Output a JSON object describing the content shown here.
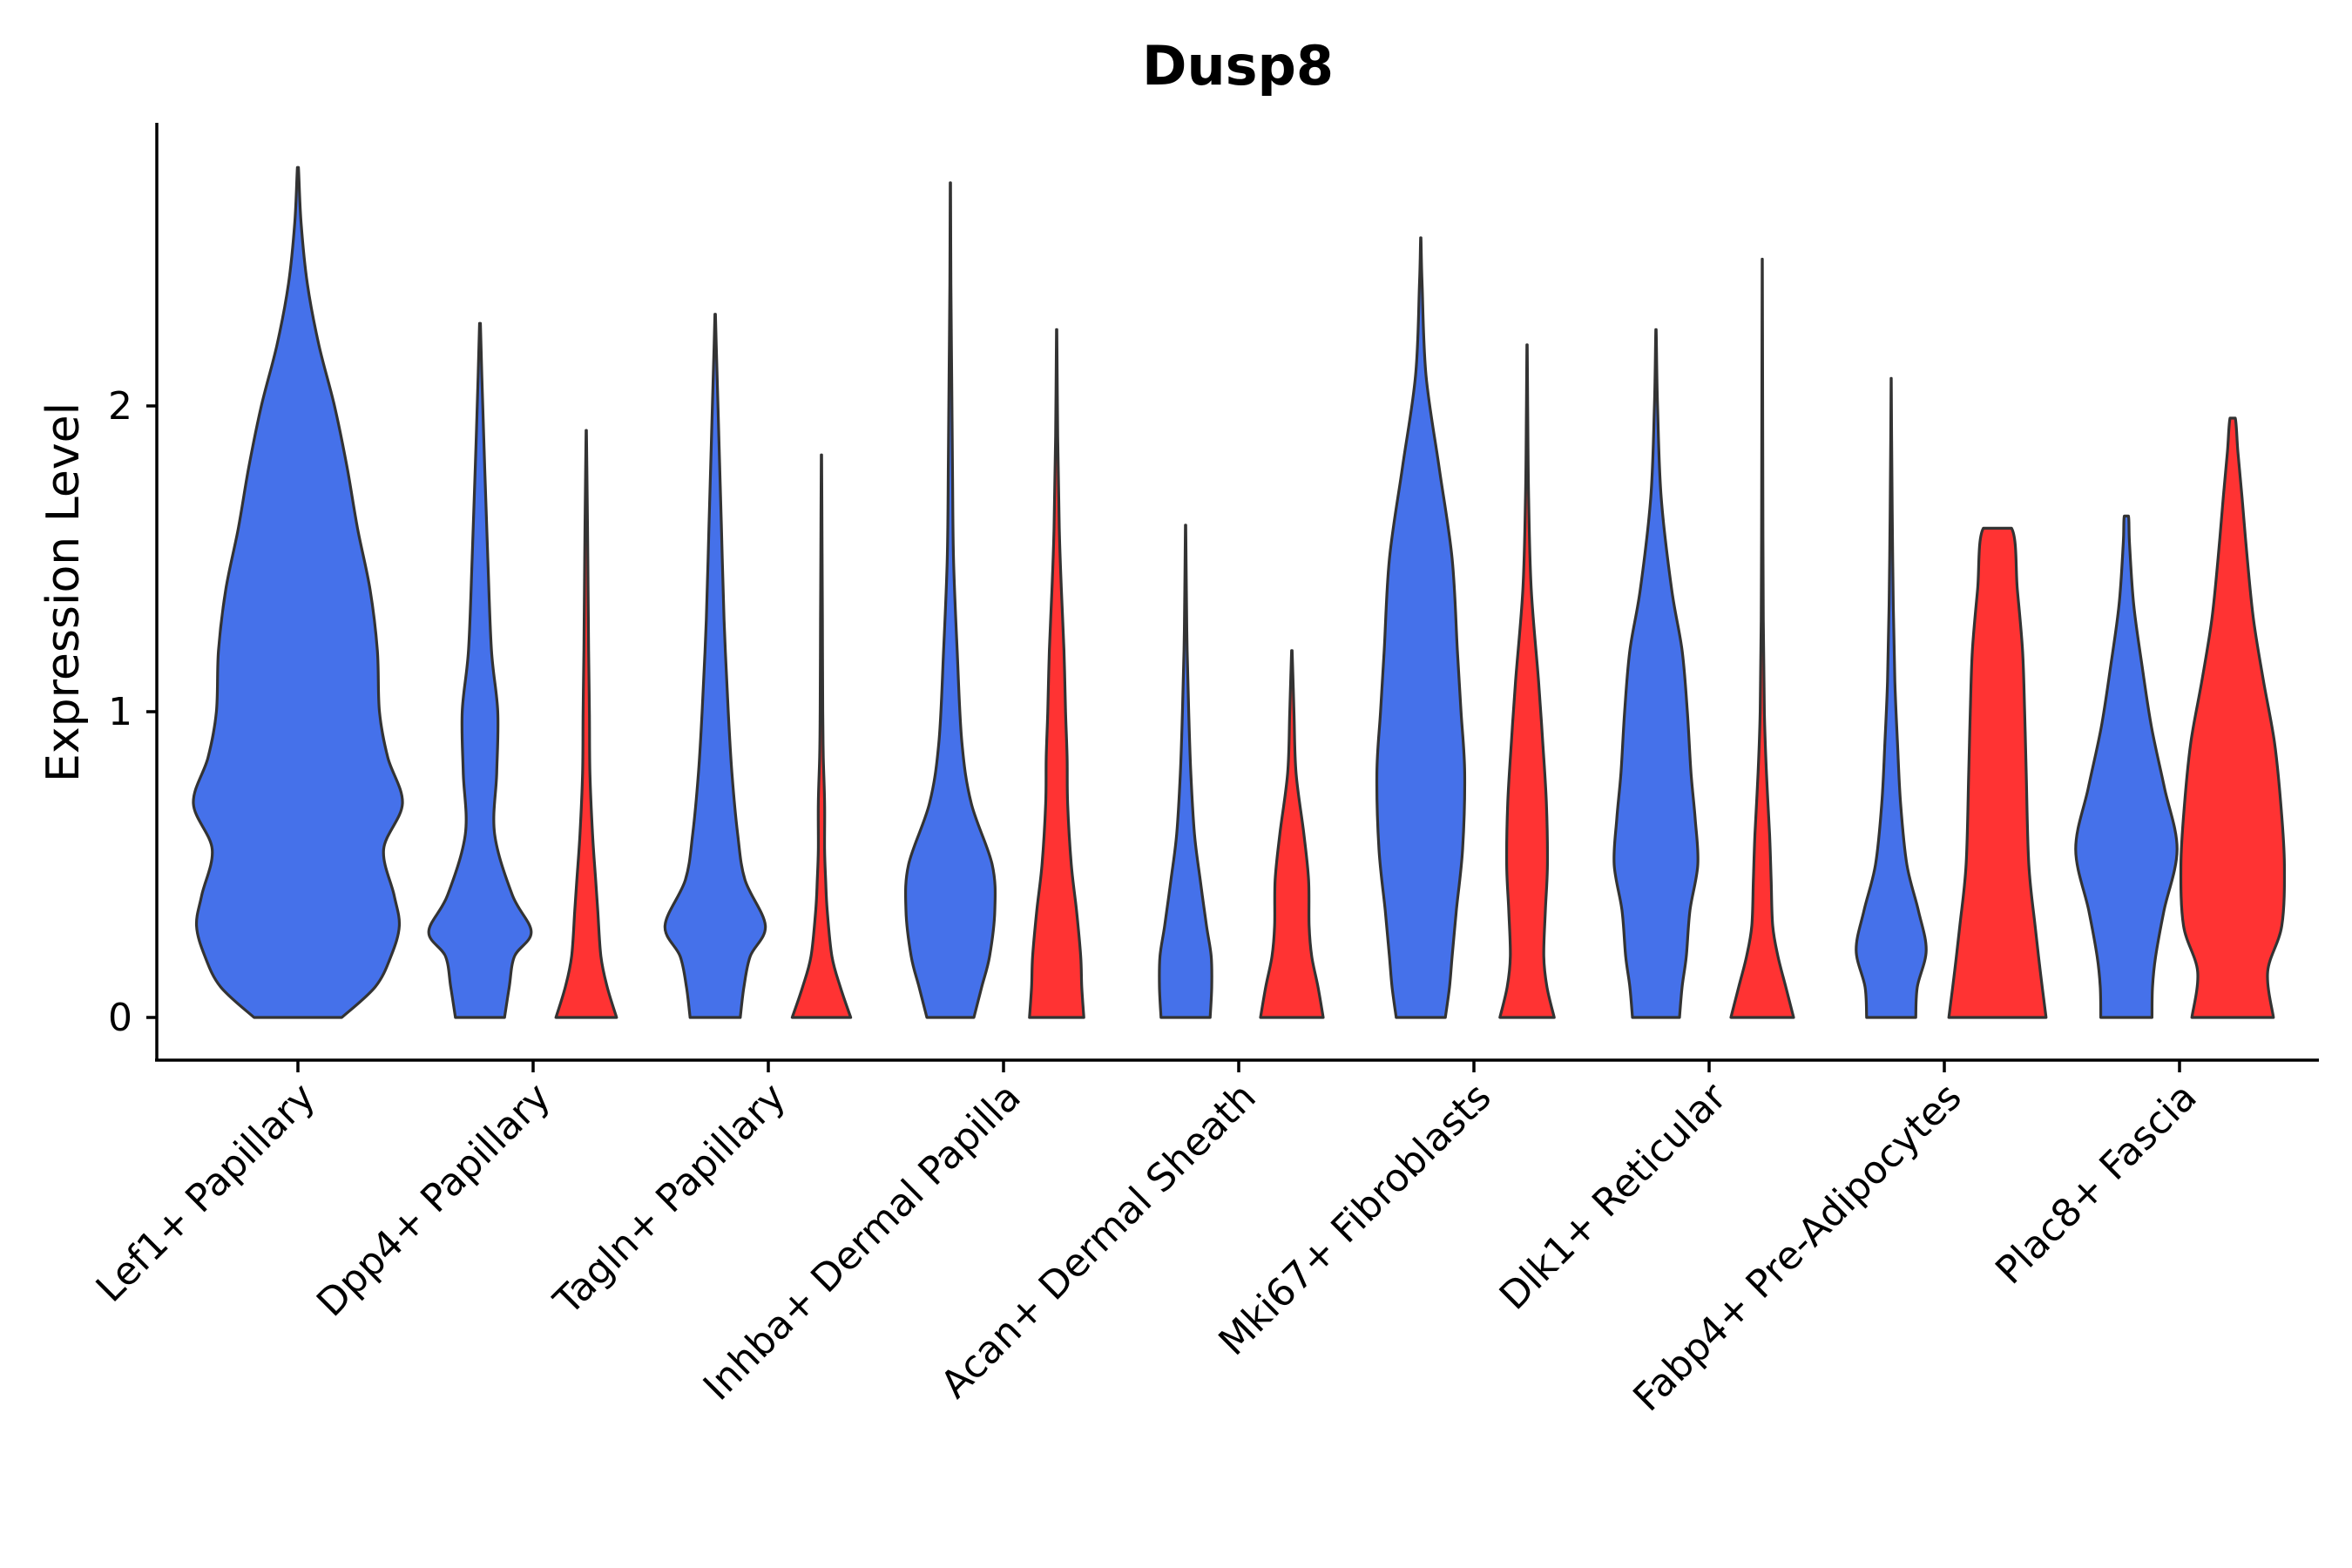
{
  "chart_data": {
    "type": "violin",
    "title": "Dusp8",
    "ylabel": "Expression Level",
    "xlabel": "",
    "ylim": [
      -0.14,
      2.95
    ],
    "yticks": [
      0,
      1,
      2
    ],
    "grid": false,
    "legend": "none",
    "split_colors": [
      "#4571EA",
      "#FF3333"
    ],
    "categories": [
      "Lef1+ Papillary",
      "Dpp4+ Papillary",
      "Tagln+ Papillary",
      "Inhba+ Dermal Papilla",
      "Acan+ Dermal Sheath",
      "Mki67+ Fibroblasts",
      "Dlk1+ Reticular",
      "Fabp4+ Pre-Adipocytes",
      "Plac8+ Fascia"
    ],
    "violins": [
      {
        "category": "Lef1+ Papillary",
        "group": 0,
        "color": "#4571EA",
        "ymax": 2.78,
        "profile": [
          [
            0,
            0.42
          ],
          [
            0.1,
            0.74
          ],
          [
            0.2,
            0.89
          ],
          [
            0.3,
            0.97
          ],
          [
            0.4,
            0.92
          ],
          [
            0.55,
            0.82
          ],
          [
            0.7,
            1.0
          ],
          [
            0.85,
            0.86
          ],
          [
            1.0,
            0.78
          ],
          [
            1.2,
            0.76
          ],
          [
            1.4,
            0.69
          ],
          [
            1.6,
            0.57
          ],
          [
            1.8,
            0.47
          ],
          [
            2.0,
            0.35
          ],
          [
            2.2,
            0.2
          ],
          [
            2.4,
            0.09
          ],
          [
            2.6,
            0.03
          ],
          [
            2.78,
            0.005
          ]
        ]
      },
      {
        "category": "Dpp4+ Papillary",
        "group": 0,
        "color": "#4571EA",
        "ymax": 2.27,
        "profile": [
          [
            0,
            0.47
          ],
          [
            0.1,
            0.56
          ],
          [
            0.2,
            0.66
          ],
          [
            0.28,
            0.98
          ],
          [
            0.4,
            0.62
          ],
          [
            0.6,
            0.28
          ],
          [
            0.8,
            0.32
          ],
          [
            1.0,
            0.34
          ],
          [
            1.2,
            0.22
          ],
          [
            1.5,
            0.15
          ],
          [
            1.8,
            0.09
          ],
          [
            2.1,
            0.035
          ],
          [
            2.27,
            0.008
          ]
        ]
      },
      {
        "category": "Dpp4+ Papillary",
        "group": 1,
        "color": "#FF3333",
        "ymax": 1.92,
        "profile": [
          [
            0,
            0.58
          ],
          [
            0.1,
            0.4
          ],
          [
            0.2,
            0.28
          ],
          [
            0.35,
            0.22
          ],
          [
            0.45,
            0.18
          ],
          [
            0.6,
            0.12
          ],
          [
            0.8,
            0.07
          ],
          [
            1.0,
            0.06
          ],
          [
            1.2,
            0.045
          ],
          [
            1.5,
            0.03
          ],
          [
            1.8,
            0.012
          ],
          [
            1.92,
            0.004
          ]
        ]
      },
      {
        "category": "Tagln+ Papillary",
        "group": 0,
        "color": "#4571EA",
        "ymax": 2.3,
        "profile": [
          [
            0,
            0.48
          ],
          [
            0.1,
            0.55
          ],
          [
            0.2,
            0.67
          ],
          [
            0.3,
            0.96
          ],
          [
            0.45,
            0.57
          ],
          [
            0.6,
            0.43
          ],
          [
            0.8,
            0.32
          ],
          [
            1.0,
            0.25
          ],
          [
            1.3,
            0.17
          ],
          [
            1.6,
            0.12
          ],
          [
            1.9,
            0.07
          ],
          [
            2.2,
            0.02
          ],
          [
            2.3,
            0.005
          ]
        ]
      },
      {
        "category": "Tagln+ Papillary",
        "group": 1,
        "color": "#FF3333",
        "ymax": 1.84,
        "profile": [
          [
            0,
            0.56
          ],
          [
            0.1,
            0.36
          ],
          [
            0.2,
            0.2
          ],
          [
            0.35,
            0.11
          ],
          [
            0.45,
            0.08
          ],
          [
            0.55,
            0.06
          ],
          [
            0.7,
            0.06
          ],
          [
            0.85,
            0.035
          ],
          [
            1.0,
            0.025
          ],
          [
            1.3,
            0.018
          ],
          [
            1.6,
            0.01
          ],
          [
            1.84,
            0.003
          ]
        ]
      },
      {
        "category": "Inhba+ Dermal Papilla",
        "group": 0,
        "color": "#4571EA",
        "ymax": 2.73,
        "profile": [
          [
            0,
            0.45
          ],
          [
            0.1,
            0.6
          ],
          [
            0.2,
            0.75
          ],
          [
            0.35,
            0.85
          ],
          [
            0.5,
            0.8
          ],
          [
            0.7,
            0.4
          ],
          [
            0.9,
            0.22
          ],
          [
            1.2,
            0.13
          ],
          [
            1.5,
            0.06
          ],
          [
            1.8,
            0.04
          ],
          [
            2.1,
            0.025
          ],
          [
            2.4,
            0.01
          ],
          [
            2.73,
            0.003
          ]
        ]
      },
      {
        "category": "Inhba+ Dermal Papilla",
        "group": 1,
        "color": "#FF3333",
        "ymax": 2.25,
        "profile": [
          [
            0,
            0.52
          ],
          [
            0.1,
            0.48
          ],
          [
            0.2,
            0.46
          ],
          [
            0.35,
            0.38
          ],
          [
            0.5,
            0.28
          ],
          [
            0.7,
            0.21
          ],
          [
            0.85,
            0.2
          ],
          [
            1.0,
            0.17
          ],
          [
            1.2,
            0.14
          ],
          [
            1.4,
            0.09
          ],
          [
            1.6,
            0.05
          ],
          [
            1.9,
            0.02
          ],
          [
            2.25,
            0.004
          ]
        ]
      },
      {
        "category": "Acan+ Dermal Sheath",
        "group": 0,
        "color": "#4571EA",
        "ymax": 1.61,
        "profile": [
          [
            0,
            0.47
          ],
          [
            0.1,
            0.5
          ],
          [
            0.2,
            0.49
          ],
          [
            0.3,
            0.4
          ],
          [
            0.45,
            0.28
          ],
          [
            0.6,
            0.17
          ],
          [
            0.8,
            0.1
          ],
          [
            1.0,
            0.06
          ],
          [
            1.2,
            0.03
          ],
          [
            1.4,
            0.015
          ],
          [
            1.61,
            0.004
          ]
        ]
      },
      {
        "category": "Acan+ Dermal Sheath",
        "group": 1,
        "color": "#FF3333",
        "ymax": 1.2,
        "profile": [
          [
            0,
            0.6
          ],
          [
            0.1,
            0.5
          ],
          [
            0.2,
            0.38
          ],
          [
            0.3,
            0.33
          ],
          [
            0.45,
            0.32
          ],
          [
            0.6,
            0.23
          ],
          [
            0.8,
            0.08
          ],
          [
            1.0,
            0.04
          ],
          [
            1.2,
            0.005
          ]
        ]
      },
      {
        "category": "Mki67+ Fibroblasts",
        "group": 0,
        "color": "#4571EA",
        "ymax": 2.55,
        "profile": [
          [
            0,
            0.47
          ],
          [
            0.1,
            0.55
          ],
          [
            0.2,
            0.6
          ],
          [
            0.35,
            0.68
          ],
          [
            0.55,
            0.8
          ],
          [
            0.8,
            0.84
          ],
          [
            1.0,
            0.77
          ],
          [
            1.2,
            0.7
          ],
          [
            1.5,
            0.6
          ],
          [
            1.8,
            0.35
          ],
          [
            2.1,
            0.1
          ],
          [
            2.4,
            0.025
          ],
          [
            2.55,
            0.004
          ]
        ]
      },
      {
        "category": "Mki67+ Fibroblasts",
        "group": 1,
        "color": "#FF3333",
        "ymax": 2.2,
        "profile": [
          [
            0,
            0.52
          ],
          [
            0.1,
            0.38
          ],
          [
            0.2,
            0.32
          ],
          [
            0.35,
            0.35
          ],
          [
            0.5,
            0.39
          ],
          [
            0.7,
            0.37
          ],
          [
            0.9,
            0.3
          ],
          [
            1.1,
            0.22
          ],
          [
            1.4,
            0.08
          ],
          [
            1.7,
            0.03
          ],
          [
            2.0,
            0.012
          ],
          [
            2.2,
            0.003
          ]
        ]
      },
      {
        "category": "Dlk1+ Reticular",
        "group": 0,
        "color": "#4571EA",
        "ymax": 2.25,
        "profile": [
          [
            0,
            0.45
          ],
          [
            0.1,
            0.5
          ],
          [
            0.2,
            0.58
          ],
          [
            0.35,
            0.65
          ],
          [
            0.5,
            0.8
          ],
          [
            0.65,
            0.75
          ],
          [
            0.8,
            0.67
          ],
          [
            1.0,
            0.6
          ],
          [
            1.2,
            0.5
          ],
          [
            1.4,
            0.3
          ],
          [
            1.7,
            0.1
          ],
          [
            2.0,
            0.03
          ],
          [
            2.25,
            0.004
          ]
        ]
      },
      {
        "category": "Dlk1+ Reticular",
        "group": 1,
        "color": "#FF3333",
        "ymax": 2.48,
        "profile": [
          [
            0,
            0.6
          ],
          [
            0.1,
            0.45
          ],
          [
            0.2,
            0.3
          ],
          [
            0.3,
            0.2
          ],
          [
            0.45,
            0.17
          ],
          [
            0.6,
            0.14
          ],
          [
            0.8,
            0.08
          ],
          [
            1.0,
            0.04
          ],
          [
            1.3,
            0.02
          ],
          [
            1.7,
            0.012
          ],
          [
            2.1,
            0.007
          ],
          [
            2.48,
            0.002
          ]
        ]
      },
      {
        "category": "Fabp4+ Pre-Adipocytes",
        "group": 0,
        "color": "#4571EA",
        "ymax": 2.09,
        "profile": [
          [
            0,
            0.47
          ],
          [
            0.1,
            0.5
          ],
          [
            0.22,
            0.67
          ],
          [
            0.35,
            0.52
          ],
          [
            0.5,
            0.3
          ],
          [
            0.7,
            0.18
          ],
          [
            0.9,
            0.12
          ],
          [
            1.1,
            0.07
          ],
          [
            1.35,
            0.04
          ],
          [
            1.65,
            0.02
          ],
          [
            1.9,
            0.008
          ],
          [
            2.09,
            0.002
          ]
        ]
      },
      {
        "category": "Fabp4+ Pre-Adipocytes",
        "group": 1,
        "color": "#FF3333",
        "ymax": 1.6,
        "profile": [
          [
            0,
            0.93
          ],
          [
            0.15,
            0.82
          ],
          [
            0.3,
            0.72
          ],
          [
            0.5,
            0.6
          ],
          [
            0.8,
            0.55
          ],
          [
            1.0,
            0.52
          ],
          [
            1.2,
            0.48
          ],
          [
            1.4,
            0.38
          ],
          [
            1.6,
            0.27
          ]
        ]
      },
      {
        "category": "Plac8+ Fascia",
        "group": 0,
        "color": "#4571EA",
        "ymax": 1.64,
        "profile": [
          [
            0,
            0.49
          ],
          [
            0.1,
            0.5
          ],
          [
            0.2,
            0.56
          ],
          [
            0.35,
            0.72
          ],
          [
            0.55,
            0.97
          ],
          [
            0.75,
            0.73
          ],
          [
            0.95,
            0.48
          ],
          [
            1.15,
            0.3
          ],
          [
            1.35,
            0.14
          ],
          [
            1.55,
            0.06
          ],
          [
            1.64,
            0.04
          ]
        ]
      },
      {
        "category": "Plac8+ Fascia",
        "group": 1,
        "color": "#FF3333",
        "ymax": 1.96,
        "profile": [
          [
            0,
            0.78
          ],
          [
            0.15,
            0.67
          ],
          [
            0.3,
            0.94
          ],
          [
            0.5,
            0.99
          ],
          [
            0.7,
            0.92
          ],
          [
            0.9,
            0.8
          ],
          [
            1.1,
            0.59
          ],
          [
            1.3,
            0.4
          ],
          [
            1.5,
            0.28
          ],
          [
            1.7,
            0.18
          ],
          [
            1.85,
            0.1
          ],
          [
            1.96,
            0.05
          ]
        ]
      }
    ]
  }
}
